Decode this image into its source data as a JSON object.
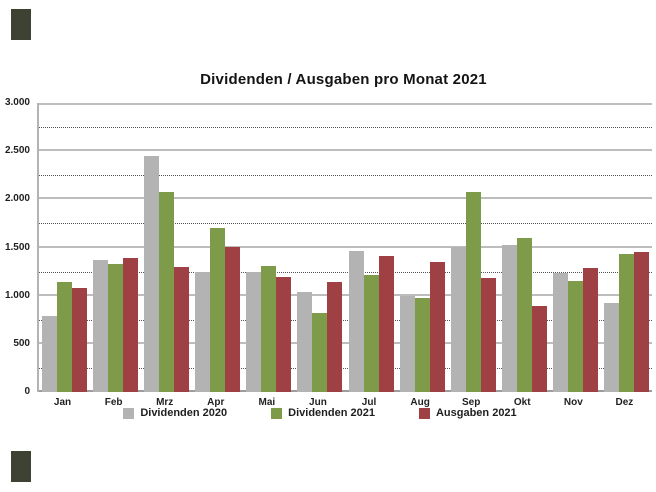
{
  "chart_data": {
    "type": "bar",
    "title": "Dividenden / Ausgaben pro Monat 2021",
    "categories": [
      "Jan",
      "Feb",
      "Mrz",
      "Apr",
      "Mai",
      "Jun",
      "Jul",
      "Aug",
      "Sep",
      "Okt",
      "Nov",
      "Dez"
    ],
    "series": [
      {
        "name": "Dividenden 2020",
        "color": "#b3b3b3",
        "values": [
          790,
          1370,
          2450,
          1250,
          1250,
          1040,
          1460,
          1000,
          1500,
          1530,
          1240,
          920
        ]
      },
      {
        "name": "Dividenden 2021",
        "color": "#7e9b49",
        "values": [
          1145,
          1330,
          2080,
          1700,
          1310,
          820,
          1210,
          980,
          2080,
          1600,
          1155,
          1435
        ]
      },
      {
        "name": "Ausgaben 2021",
        "color": "#9e4044",
        "values": [
          1075,
          1395,
          1295,
          1510,
          1195,
          1145,
          1415,
          1350,
          1185,
          895,
          1285,
          1450
        ]
      }
    ],
    "ylim": [
      0,
      3000
    ],
    "y_major_step": 500,
    "y_minor_step": 250,
    "y_tick_labels": [
      "0",
      "500",
      "1.000",
      "1.500",
      "2.000",
      "2.500",
      "3.000"
    ],
    "grid": {
      "major": "solid",
      "minor": "dotted"
    },
    "legend_position": "bottom"
  },
  "decor": {
    "corner_mark_color": "#3e4233"
  }
}
